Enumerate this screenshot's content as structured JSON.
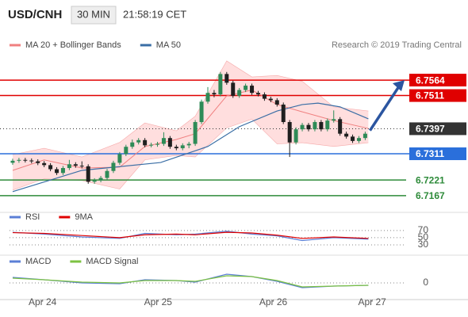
{
  "header": {
    "symbol": "USD/CNH",
    "interval": "30 MIN",
    "time": "21:58:19 CET"
  },
  "chart_data": [
    {
      "type": "candlestick",
      "annotation": "Research © 2019 Trading Central",
      "xlim": [
        -0.5,
        62.5
      ],
      "ylim": [
        6.7126,
        6.7635
      ],
      "xticks": [
        {
          "value": 4.75,
          "label": "Apr 24"
        },
        {
          "value": 23.1,
          "label": "Apr 25"
        },
        {
          "value": 41.4,
          "label": "Apr 26"
        },
        {
          "value": 57.1,
          "label": "Apr 27"
        }
      ],
      "up_color": "#2e8b57",
      "down_color": "#1f1f1f",
      "open": [
        6.728,
        6.7287,
        6.729,
        6.7288,
        6.7285,
        6.7279,
        6.7272,
        6.7258,
        6.7245,
        6.7262,
        6.7275,
        6.727,
        6.7268,
        6.7215,
        6.722,
        6.7228,
        6.7252,
        6.728,
        6.731,
        6.7335,
        6.735,
        6.7358,
        6.734,
        6.7342,
        6.7345,
        6.7365,
        6.7335,
        6.733,
        6.734,
        6.7345,
        6.742,
        6.749,
        6.752,
        6.7515,
        6.7585,
        6.7555,
        6.751,
        6.753,
        6.7545,
        6.752,
        6.7515,
        6.75,
        6.7495,
        6.748,
        6.742,
        6.735,
        6.7395,
        6.741,
        6.7395,
        6.742,
        6.7395,
        6.7425,
        6.743,
        6.738,
        6.737,
        6.7355,
        6.7365
      ],
      "high": [
        6.7294,
        6.7297,
        6.7297,
        6.7295,
        6.7292,
        6.7286,
        6.7279,
        6.7265,
        6.7269,
        6.729,
        6.7282,
        6.7285,
        6.7275,
        6.7227,
        6.7235,
        6.7259,
        6.7287,
        6.7317,
        6.7342,
        6.736,
        6.7365,
        6.7365,
        6.7349,
        6.7352,
        6.7385,
        6.7372,
        6.7342,
        6.7347,
        6.7352,
        6.7427,
        6.7497,
        6.754,
        6.753,
        6.7592,
        6.7592,
        6.7562,
        6.7537,
        6.7552,
        6.7552,
        6.7527,
        6.7522,
        6.7507,
        6.7502,
        6.7487,
        6.7427,
        6.7402,
        6.7417,
        6.7417,
        6.7427,
        6.7427,
        6.7432,
        6.746,
        6.7437,
        6.7387,
        6.7377,
        6.7372,
        6.7387
      ],
      "low": [
        6.7273,
        6.728,
        6.7281,
        6.7278,
        6.7272,
        6.7265,
        6.7251,
        6.7238,
        6.7238,
        6.7255,
        6.7263,
        6.7261,
        6.7208,
        6.7208,
        6.7213,
        6.7221,
        6.7245,
        6.7273,
        6.7303,
        6.7328,
        6.7343,
        6.7333,
        6.7333,
        6.7335,
        6.7338,
        6.7328,
        6.7323,
        6.7323,
        6.733,
        6.7338,
        6.7413,
        6.7483,
        6.7505,
        6.7508,
        6.7548,
        6.7503,
        6.7503,
        6.7523,
        6.7513,
        6.7508,
        6.7493,
        6.7488,
        6.7473,
        6.7413,
        6.73,
        6.7343,
        6.7388,
        6.7388,
        6.7388,
        6.7388,
        6.7388,
        6.7418,
        6.7373,
        6.7363,
        6.7348,
        6.7348,
        6.7358
      ],
      "close": [
        6.7287,
        6.729,
        6.7288,
        6.7285,
        6.7279,
        6.7272,
        6.7258,
        6.7245,
        6.7262,
        6.7275,
        6.727,
        6.7268,
        6.7215,
        6.722,
        6.7228,
        6.7252,
        6.728,
        6.731,
        6.7335,
        6.735,
        6.7358,
        6.734,
        6.7342,
        6.7345,
        6.7365,
        6.7335,
        6.733,
        6.734,
        6.7345,
        6.742,
        6.749,
        6.752,
        6.7515,
        6.7585,
        6.7555,
        6.751,
        6.753,
        6.7545,
        6.752,
        6.7515,
        6.75,
        6.7495,
        6.748,
        6.742,
        6.735,
        6.7395,
        6.741,
        6.7395,
        6.742,
        6.7395,
        6.7425,
        6.743,
        6.738,
        6.737,
        6.7355,
        6.7365,
        6.738
      ],
      "overlays": [
        {
          "name": "MA 20 + Bollinger Bands",
          "color": "#f08080",
          "band_color": "#ffd6d6",
          "x": [
            0,
            5,
            11,
            17,
            21,
            26,
            29,
            34,
            38,
            42,
            46,
            51,
            56.5
          ],
          "values": [
            6.7254,
            6.729,
            6.7262,
            6.7265,
            6.7336,
            6.736,
            6.738,
            6.751,
            6.753,
            6.748,
            6.7455,
            6.7425,
            6.7398
          ],
          "upper": [
            6.7308,
            6.733,
            6.73,
            6.735,
            6.7417,
            6.739,
            6.744,
            6.763,
            6.7575,
            6.758,
            6.756,
            6.7472,
            6.7458
          ],
          "lower": [
            6.7186,
            6.7225,
            6.7219,
            6.719,
            6.729,
            6.7305,
            6.73,
            6.74,
            6.743,
            6.7345,
            6.7349,
            6.7336,
            6.7349
          ]
        },
        {
          "name": "MA 50",
          "color": "#3a6ea5",
          "x": [
            0,
            11,
            23.5,
            31,
            36,
            42,
            46,
            48.5,
            52,
            56.5
          ],
          "values": [
            6.7181,
            6.7254,
            6.7281,
            6.7336,
            6.7404,
            6.7458,
            6.748,
            6.7485,
            6.7472,
            6.7431
          ]
        }
      ],
      "levels": [
        {
          "value": 6.7564,
          "color": "#e00000",
          "boxed": true,
          "dotted": false
        },
        {
          "value": 6.7511,
          "color": "#e00000",
          "boxed": true,
          "dotted": false
        },
        {
          "value": 6.7397,
          "color": "#333333",
          "boxed": true,
          "dotted": true
        },
        {
          "value": 6.7311,
          "color": "#2a6fdb",
          "boxed": true,
          "dotted": false
        },
        {
          "value": 6.7221,
          "color": "#2e8b3a",
          "boxed": false,
          "dotted": false
        },
        {
          "value": 6.7167,
          "color": "#2e8b3a",
          "boxed": false,
          "dotted": false
        }
      ]
    },
    {
      "type": "line",
      "xlim": [
        -0.5,
        62.5
      ],
      "ylim": [
        10,
        94
      ],
      "yticks": [
        30,
        50,
        70
      ],
      "series": [
        {
          "name": "RSI",
          "color": "#5b7fd6",
          "x": [
            0,
            5,
            11,
            17,
            21,
            26,
            29,
            34,
            38,
            42,
            46,
            51,
            56.5
          ],
          "values": [
            65,
            60,
            52,
            48,
            62,
            58,
            60,
            68,
            60,
            55,
            42,
            50,
            46
          ]
        },
        {
          "name": "9MA",
          "color": "#e00000",
          "x": [
            0,
            5,
            11,
            17,
            21,
            26,
            29,
            34,
            38,
            42,
            46,
            51,
            56.5
          ],
          "values": [
            64,
            62,
            56,
            50,
            58,
            60,
            58,
            65,
            63,
            57,
            48,
            52,
            48
          ]
        }
      ]
    },
    {
      "type": "line",
      "xlim": [
        -0.5,
        62.5
      ],
      "ylim": [
        -10,
        10
      ],
      "yticks": [
        0
      ],
      "series": [
        {
          "name": "MACD",
          "color": "#5b7fd6",
          "x": [
            0,
            5,
            11,
            17,
            21,
            26,
            29,
            34,
            38,
            42,
            46,
            51,
            56.5
          ],
          "values": [
            3.5,
            2,
            0,
            -0.5,
            2,
            1.5,
            0.5,
            5.5,
            4,
            1,
            -3,
            -2,
            -1.5
          ]
        },
        {
          "name": "MACD Signal",
          "color": "#7cc242",
          "x": [
            0,
            5,
            11,
            17,
            21,
            26,
            29,
            34,
            38,
            42,
            46,
            51,
            56.5
          ],
          "values": [
            3,
            2,
            0.5,
            0,
            1.5,
            1.5,
            1,
            4.5,
            4,
            1.5,
            -2.5,
            -2,
            -1.5
          ]
        }
      ]
    }
  ]
}
